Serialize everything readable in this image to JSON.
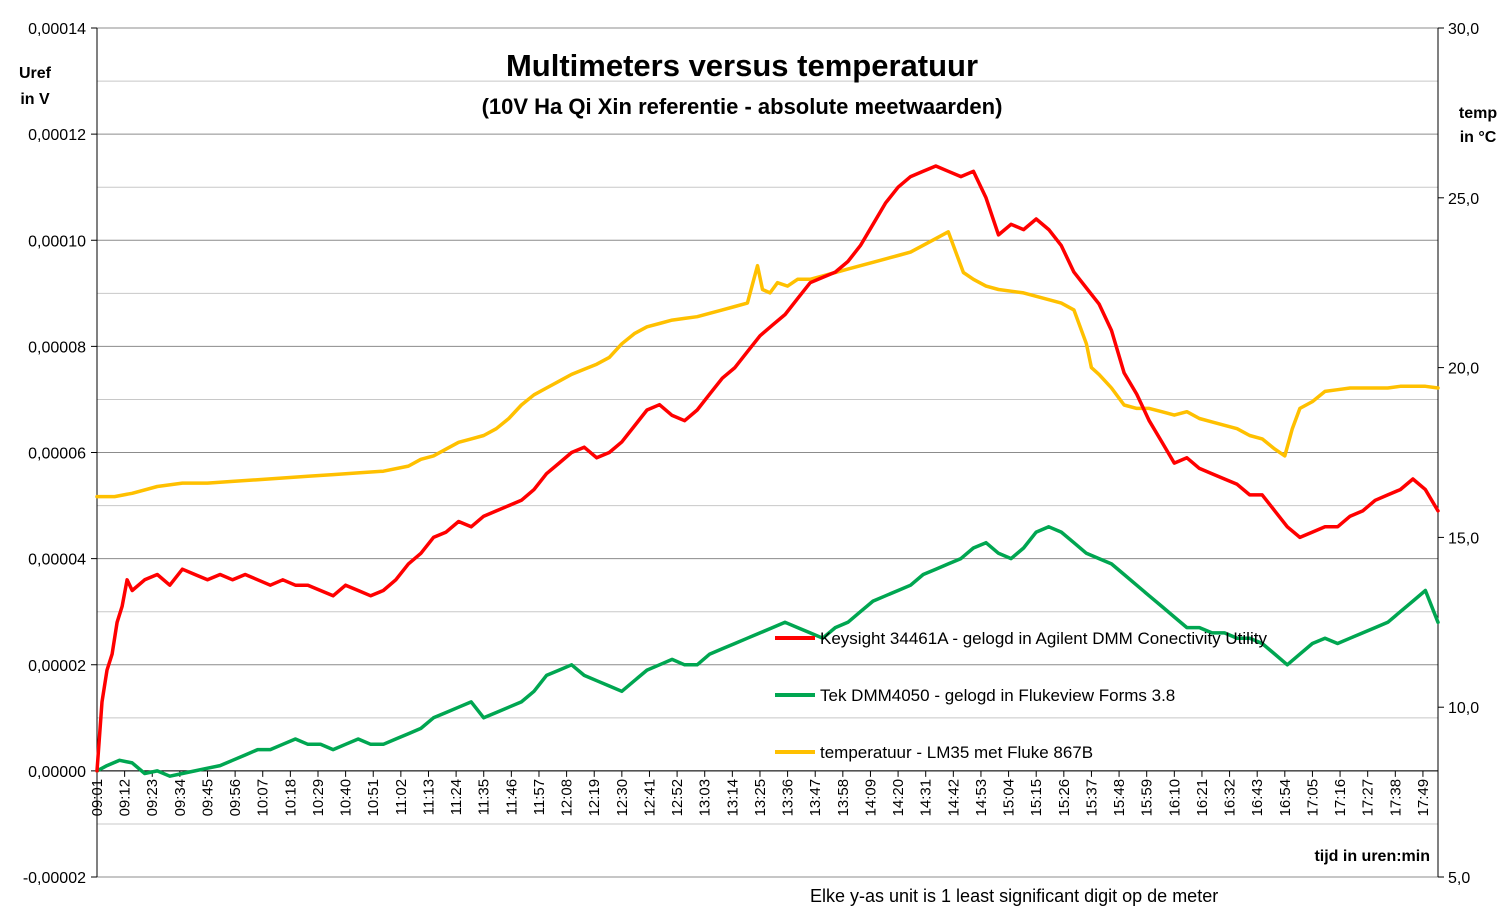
{
  "chart_data": {
    "type": "line",
    "title": "Multimeters versus temperatuur",
    "subtitle": "(10V Ha Qi Xin referentie - absolute meetwaarden)",
    "ylabel_left": [
      "Uref",
      "in V"
    ],
    "ylabel_right": [
      "temp",
      "in °C"
    ],
    "xlabel": "tijd in uren:min",
    "footnote": "Elke y-as unit is 1 least significant digit op  de meter",
    "ylim_left": [
      -2e-05,
      0.00014
    ],
    "ylim_right": [
      5.0,
      30.0
    ],
    "yticks_left": [
      "-0,00002",
      "0,00000",
      "0,00002",
      "0,00004",
      "0,00006",
      "0,00008",
      "0,00010",
      "0,00012",
      "0,00014"
    ],
    "yticks_right": [
      "5,0",
      "10,0",
      "15,0",
      "20,0",
      "25,0",
      "30,0"
    ],
    "x_start": "09:01",
    "x_end": "17:55",
    "x_ticks": [
      "09:01",
      "09:12",
      "09:23",
      "09:34",
      "09:45",
      "09:56",
      "10:07",
      "10:18",
      "10:29",
      "10:40",
      "10:51",
      "11:02",
      "11:13",
      "11:24",
      "11:35",
      "11:46",
      "11:57",
      "12:08",
      "12:19",
      "12:30",
      "12:41",
      "12:52",
      "13:03",
      "13:14",
      "13:25",
      "13:36",
      "13:47",
      "13:58",
      "14:09",
      "14:20",
      "14:31",
      "14:42",
      "14:53",
      "15:04",
      "15:15",
      "15:26",
      "15:37",
      "15:48",
      "15:59",
      "16:10",
      "16:21",
      "16:32",
      "16:43",
      "16:54",
      "17:05",
      "17:16",
      "17:27",
      "17:38",
      "17:49"
    ],
    "grid": "horizontal",
    "legend_position": "center-right",
    "series": [
      {
        "name": "Keysight 34461A - gelogd in Agilent DMM Conectivity Utility",
        "axis": "left",
        "color": "#ff0000",
        "x": [
          "09:01",
          "09:03",
          "09:05",
          "09:07",
          "09:09",
          "09:11",
          "09:13",
          "09:15",
          "09:20",
          "09:25",
          "09:30",
          "09:35",
          "09:40",
          "09:45",
          "09:50",
          "09:55",
          "10:00",
          "10:05",
          "10:10",
          "10:15",
          "10:20",
          "10:25",
          "10:30",
          "10:35",
          "10:40",
          "10:45",
          "10:50",
          "10:55",
          "11:00",
          "11:05",
          "11:10",
          "11:15",
          "11:20",
          "11:25",
          "11:30",
          "11:35",
          "11:40",
          "11:45",
          "11:50",
          "11:55",
          "12:00",
          "12:05",
          "12:10",
          "12:15",
          "12:20",
          "12:25",
          "12:30",
          "12:35",
          "12:40",
          "12:45",
          "12:50",
          "12:55",
          "13:00",
          "13:05",
          "13:10",
          "13:15",
          "13:20",
          "13:25",
          "13:30",
          "13:35",
          "13:40",
          "13:45",
          "13:50",
          "13:55",
          "14:00",
          "14:05",
          "14:10",
          "14:15",
          "14:20",
          "14:25",
          "14:30",
          "14:35",
          "14:40",
          "14:45",
          "14:50",
          "14:55",
          "15:00",
          "15:05",
          "15:10",
          "15:15",
          "15:20",
          "15:25",
          "15:30",
          "15:35",
          "15:40",
          "15:45",
          "15:50",
          "15:55",
          "16:00",
          "16:05",
          "16:10",
          "16:15",
          "16:20",
          "16:25",
          "16:30",
          "16:35",
          "16:40",
          "16:45",
          "16:50",
          "16:55",
          "17:00",
          "17:05",
          "17:10",
          "17:15",
          "17:20",
          "17:25",
          "17:30",
          "17:35",
          "17:40",
          "17:45",
          "17:50",
          "17:55"
        ],
        "values": [
          0.0,
          1.3e-05,
          1.9e-05,
          2.2e-05,
          2.8e-05,
          3.1e-05,
          3.6e-05,
          3.4e-05,
          3.6e-05,
          3.7e-05,
          3.5e-05,
          3.8e-05,
          3.7e-05,
          3.6e-05,
          3.7e-05,
          3.6e-05,
          3.7e-05,
          3.6e-05,
          3.5e-05,
          3.6e-05,
          3.5e-05,
          3.5e-05,
          3.4e-05,
          3.3e-05,
          3.5e-05,
          3.4e-05,
          3.3e-05,
          3.4e-05,
          3.6e-05,
          3.9e-05,
          4.1e-05,
          4.4e-05,
          4.5e-05,
          4.7e-05,
          4.6e-05,
          4.8e-05,
          4.9e-05,
          5e-05,
          5.1e-05,
          5.3e-05,
          5.6e-05,
          5.8e-05,
          6e-05,
          6.1e-05,
          5.9e-05,
          6e-05,
          6.2e-05,
          6.5e-05,
          6.8e-05,
          6.9e-05,
          6.7e-05,
          6.6e-05,
          6.8e-05,
          7.1e-05,
          7.4e-05,
          7.6e-05,
          7.9e-05,
          8.2e-05,
          8.4e-05,
          8.6e-05,
          8.9e-05,
          9.2e-05,
          9.3e-05,
          9.4e-05,
          9.6e-05,
          9.9e-05,
          0.000103,
          0.000107,
          0.00011,
          0.000112,
          0.000113,
          0.000114,
          0.000113,
          0.000112,
          0.000113,
          0.000108,
          0.000101,
          0.000103,
          0.000102,
          0.000104,
          0.000102,
          9.9e-05,
          9.4e-05,
          9.1e-05,
          8.8e-05,
          8.3e-05,
          7.5e-05,
          7.1e-05,
          6.6e-05,
          6.2e-05,
          5.8e-05,
          5.9e-05,
          5.7e-05,
          5.6e-05,
          5.5e-05,
          5.4e-05,
          5.2e-05,
          5.2e-05,
          4.9e-05,
          4.6e-05,
          4.4e-05,
          4.5e-05,
          4.6e-05,
          4.6e-05,
          4.8e-05,
          4.9e-05,
          5.1e-05,
          5.2e-05,
          5.3e-05,
          5.5e-05,
          5.3e-05,
          4.9e-05
        ]
      },
      {
        "name": "Tek DMM4050 - gelogd in Flukeview Forms 3.8",
        "axis": "left",
        "color": "#00a651",
        "x": [
          "09:01",
          "09:05",
          "09:10",
          "09:15",
          "09:20",
          "09:25",
          "09:30",
          "09:35",
          "09:40",
          "09:45",
          "09:50",
          "09:55",
          "10:00",
          "10:05",
          "10:10",
          "10:15",
          "10:20",
          "10:25",
          "10:30",
          "10:35",
          "10:40",
          "10:45",
          "10:50",
          "10:55",
          "11:00",
          "11:05",
          "11:10",
          "11:15",
          "11:20",
          "11:25",
          "11:30",
          "11:35",
          "11:40",
          "11:45",
          "11:50",
          "11:55",
          "12:00",
          "12:05",
          "12:10",
          "12:15",
          "12:20",
          "12:25",
          "12:30",
          "12:35",
          "12:40",
          "12:45",
          "12:50",
          "12:55",
          "13:00",
          "13:05",
          "13:10",
          "13:15",
          "13:20",
          "13:25",
          "13:30",
          "13:35",
          "13:40",
          "13:45",
          "13:50",
          "13:55",
          "14:00",
          "14:05",
          "14:10",
          "14:15",
          "14:20",
          "14:25",
          "14:30",
          "14:35",
          "14:40",
          "14:45",
          "14:50",
          "14:55",
          "15:00",
          "15:05",
          "15:10",
          "15:15",
          "15:20",
          "15:25",
          "15:30",
          "15:35",
          "15:40",
          "15:45",
          "15:50",
          "15:55",
          "16:00",
          "16:05",
          "16:10",
          "16:15",
          "16:20",
          "16:25",
          "16:30",
          "16:35",
          "16:40",
          "16:45",
          "16:50",
          "16:55",
          "17:00",
          "17:05",
          "17:10",
          "17:15",
          "17:20",
          "17:25",
          "17:30",
          "17:35",
          "17:40",
          "17:45",
          "17:50",
          "17:55"
        ],
        "values": [
          0.0,
          1e-06,
          2e-06,
          1.5e-06,
          -5e-07,
          0.0,
          -1e-06,
          -5e-07,
          0.0,
          5e-07,
          1e-06,
          2e-06,
          3e-06,
          4e-06,
          4e-06,
          5e-06,
          6e-06,
          5e-06,
          5e-06,
          4e-06,
          5e-06,
          6e-06,
          5e-06,
          5e-06,
          6e-06,
          7e-06,
          8e-06,
          1e-05,
          1.1e-05,
          1.2e-05,
          1.3e-05,
          1e-05,
          1.1e-05,
          1.2e-05,
          1.3e-05,
          1.5e-05,
          1.8e-05,
          1.9e-05,
          2e-05,
          1.8e-05,
          1.7e-05,
          1.6e-05,
          1.5e-05,
          1.7e-05,
          1.9e-05,
          2e-05,
          2.1e-05,
          2e-05,
          2e-05,
          2.2e-05,
          2.3e-05,
          2.4e-05,
          2.5e-05,
          2.6e-05,
          2.7e-05,
          2.8e-05,
          2.7e-05,
          2.6e-05,
          2.5e-05,
          2.7e-05,
          2.8e-05,
          3e-05,
          3.2e-05,
          3.3e-05,
          3.4e-05,
          3.5e-05,
          3.7e-05,
          3.8e-05,
          3.9e-05,
          4e-05,
          4.2e-05,
          4.3e-05,
          4.1e-05,
          4e-05,
          4.2e-05,
          4.5e-05,
          4.6e-05,
          4.5e-05,
          4.3e-05,
          4.1e-05,
          4e-05,
          3.9e-05,
          3.7e-05,
          3.5e-05,
          3.3e-05,
          3.1e-05,
          2.9e-05,
          2.7e-05,
          2.7e-05,
          2.6e-05,
          2.6e-05,
          2.5e-05,
          2.5e-05,
          2.4e-05,
          2.2e-05,
          2e-05,
          2.2e-05,
          2.4e-05,
          2.5e-05,
          2.4e-05,
          2.5e-05,
          2.6e-05,
          2.7e-05,
          2.8e-05,
          3e-05,
          3.2e-05,
          3.4e-05,
          2.8e-05
        ]
      },
      {
        "name": "temperatuur - LM35 met Fluke 867B",
        "axis": "right",
        "color": "#ffc000",
        "x": [
          "09:01",
          "09:08",
          "09:15",
          "09:25",
          "09:35",
          "09:45",
          "09:55",
          "10:05",
          "10:15",
          "10:25",
          "10:35",
          "10:45",
          "10:55",
          "11:05",
          "11:10",
          "11:15",
          "11:20",
          "11:25",
          "11:30",
          "11:35",
          "11:40",
          "11:45",
          "11:50",
          "11:55",
          "12:00",
          "12:05",
          "12:10",
          "12:15",
          "12:20",
          "12:25",
          "12:30",
          "12:35",
          "12:40",
          "12:45",
          "12:50",
          "12:55",
          "13:00",
          "13:05",
          "13:10",
          "13:15",
          "13:20",
          "13:24",
          "13:26",
          "13:29",
          "13:32",
          "13:36",
          "13:40",
          "13:45",
          "13:50",
          "13:55",
          "14:00",
          "14:05",
          "14:10",
          "14:15",
          "14:20",
          "14:25",
          "14:30",
          "14:35",
          "14:40",
          "14:43",
          "14:46",
          "14:50",
          "14:55",
          "15:00",
          "15:05",
          "15:10",
          "15:15",
          "15:20",
          "15:25",
          "15:30",
          "15:35",
          "15:37",
          "15:40",
          "15:45",
          "15:50",
          "15:55",
          "16:00",
          "16:05",
          "16:10",
          "16:15",
          "16:20",
          "16:25",
          "16:30",
          "16:35",
          "16:40",
          "16:45",
          "16:50",
          "16:54",
          "16:57",
          "17:00",
          "17:05",
          "17:10",
          "17:15",
          "17:20",
          "17:25",
          "17:30",
          "17:35",
          "17:40",
          "17:45",
          "17:50",
          "17:55"
        ],
        "values": [
          16.2,
          16.2,
          16.3,
          16.5,
          16.6,
          16.6,
          16.65,
          16.7,
          16.75,
          16.8,
          16.85,
          16.9,
          16.95,
          17.1,
          17.3,
          17.4,
          17.6,
          17.8,
          17.9,
          18.0,
          18.2,
          18.5,
          18.9,
          19.2,
          19.4,
          19.6,
          19.8,
          19.95,
          20.1,
          20.3,
          20.7,
          21.0,
          21.2,
          21.3,
          21.4,
          21.45,
          21.5,
          21.6,
          21.7,
          21.8,
          21.9,
          23.0,
          22.3,
          22.2,
          22.5,
          22.4,
          22.6,
          22.6,
          22.7,
          22.8,
          22.9,
          23.0,
          23.1,
          23.2,
          23.3,
          23.4,
          23.6,
          23.8,
          24.0,
          23.4,
          22.8,
          22.6,
          22.4,
          22.3,
          22.25,
          22.2,
          22.1,
          22.0,
          21.9,
          21.7,
          20.7,
          20.0,
          19.8,
          19.4,
          18.9,
          18.8,
          18.8,
          18.7,
          18.6,
          18.7,
          18.5,
          18.4,
          18.3,
          18.2,
          18.0,
          17.9,
          17.6,
          17.4,
          18.2,
          18.8,
          19.0,
          19.3,
          19.35,
          19.4,
          19.4,
          19.4,
          19.4,
          19.45,
          19.45,
          19.45,
          19.4
        ]
      }
    ]
  }
}
